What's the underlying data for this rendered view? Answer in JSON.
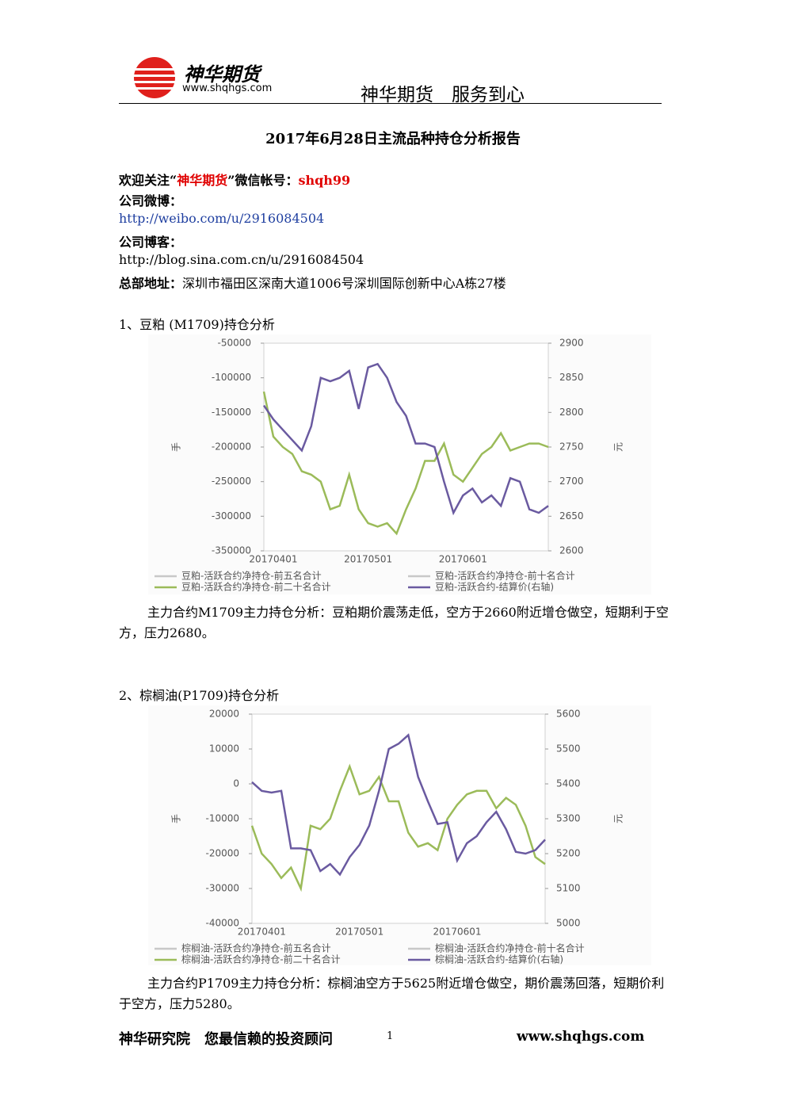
{
  "header": {
    "logo_name": "神华期货",
    "logo_url": "www.shqhgs.com",
    "slogan": "神华期货　服务到心"
  },
  "title": "2017年6月28日主流品种持仓分析报告",
  "contact": {
    "wechat": [
      "欢迎关注“",
      "神华期货",
      "”微信帐号：",
      "shqh99"
    ],
    "weibo_label": "公司微博：",
    "weibo_url": "http://weibo.com/u/2916084504",
    "blog_label": "公司博客：",
    "blog_url": "http://blog.sina.com.cn/u/2916084504",
    "address_label": "总部地址：",
    "address": "深圳市福田区深南大道1006号深圳国际创新中心A栋27楼"
  },
  "sections": [
    {
      "heading": "1、豆粕 (M1709)持仓分析",
      "text": "主力合约M1709主力持仓分析：豆粕期价震荡走低，空方于2660附近增仓做空，短期利于空方，压力2680。"
    },
    {
      "heading": "2、棕榈油(P1709)持仓分析",
      "text": "主力合约P1709主力持仓分析：棕榈油空方于5625附近增仓做空，期价震荡回落，短期价利于空方，压力5280。"
    }
  ],
  "footer": {
    "left": "神华研究院　您最信赖的投资顾问",
    "page": "1",
    "right": "www.shqhgs.com"
  },
  "chart_data": [
    {
      "type": "line",
      "ylabel": "手",
      "y2label": "元",
      "categories": [
        null,
        "20170401",
        null,
        null,
        null,
        null,
        null,
        null,
        null,
        null,
        null,
        "20170501",
        null,
        null,
        null,
        null,
        null,
        null,
        null,
        null,
        null,
        "20170601",
        null,
        null,
        null,
        null,
        null,
        null,
        null,
        null,
        null
      ],
      "ylim": [
        -350000,
        -50000
      ],
      "yticks": [
        -50000,
        -100000,
        -150000,
        -200000,
        -250000,
        -300000,
        -350000
      ],
      "y2lim": [
        2600,
        2900
      ],
      "y2ticks": [
        2900,
        2850,
        2800,
        2750,
        2700,
        2650,
        2600
      ],
      "series": [
        {
          "name": "豆粕-活跃合约净持仓-前五名合计",
          "color": "#c8c8c8",
          "values": [
            null,
            null,
            null,
            null,
            null,
            null,
            null,
            null,
            null,
            null,
            null,
            null,
            null,
            null,
            null,
            null,
            null,
            null,
            null,
            null,
            null,
            null,
            null,
            null,
            null,
            null,
            null,
            null,
            null,
            null,
            null
          ]
        },
        {
          "name": "豆粕-活跃合约净持仓-前十名合计",
          "color": "#c8c8c8",
          "values": [
            null,
            null,
            null,
            null,
            null,
            null,
            null,
            null,
            null,
            null,
            null,
            null,
            null,
            null,
            null,
            null,
            null,
            null,
            null,
            null,
            null,
            null,
            null,
            null,
            null,
            null,
            null,
            null,
            null,
            null,
            null
          ]
        },
        {
          "name": "豆粕-活跃合约净持仓-前二十名合计",
          "color": "#9bbb59",
          "values": [
            -120000,
            -185000,
            -200000,
            -210000,
            -235000,
            -240000,
            -250000,
            -290000,
            -285000,
            -240000,
            -290000,
            -310000,
            -315000,
            -310000,
            -325000,
            -290000,
            -260000,
            -220000,
            -220000,
            -195000,
            -240000,
            -250000,
            -230000,
            -210000,
            -200000,
            -180000,
            -205000,
            -200000,
            -195000,
            -195000,
            -200000
          ]
        },
        {
          "name": "豆粕-活跃合约-结算价(右轴)",
          "color": "#6a5aa0",
          "axis": "y2",
          "values": [
            2810,
            2790,
            2775,
            2760,
            2745,
            2780,
            2850,
            2845,
            2850,
            2860,
            2805,
            2865,
            2870,
            2850,
            2815,
            2795,
            2755,
            2755,
            2750,
            2700,
            2655,
            2680,
            2690,
            2670,
            2680,
            2665,
            2705,
            2700,
            2660,
            2655,
            2665
          ]
        }
      ]
    },
    {
      "type": "line",
      "ylabel": "手",
      "y2label": "元",
      "categories": [
        null,
        "20170401",
        null,
        null,
        null,
        null,
        null,
        null,
        null,
        null,
        null,
        "20170501",
        null,
        null,
        null,
        null,
        null,
        null,
        null,
        null,
        null,
        "20170601",
        null,
        null,
        null,
        null,
        null,
        null,
        null,
        null,
        null
      ],
      "ylim": [
        -40000,
        20000
      ],
      "yticks": [
        20000,
        10000,
        0,
        -10000,
        -20000,
        -30000,
        -40000
      ],
      "y2lim": [
        5000,
        5600
      ],
      "y2ticks": [
        5600,
        5500,
        5400,
        5300,
        5200,
        5100,
        5000
      ],
      "series": [
        {
          "name": "棕榈油-活跃合约净持仓-前五名合计",
          "color": "#c8c8c8",
          "values": [
            null,
            null,
            null,
            null,
            null,
            null,
            null,
            null,
            null,
            null,
            null,
            null,
            null,
            null,
            null,
            null,
            null,
            null,
            null,
            null,
            null,
            null,
            null,
            null,
            null,
            null,
            null,
            null,
            null,
            null,
            null
          ]
        },
        {
          "name": "棕榈油-活跃合约净持仓-前十名合计",
          "color": "#c8c8c8",
          "values": [
            null,
            null,
            null,
            null,
            null,
            null,
            null,
            null,
            null,
            null,
            null,
            null,
            null,
            null,
            null,
            null,
            null,
            null,
            null,
            null,
            null,
            null,
            null,
            null,
            null,
            null,
            null,
            null,
            null,
            null,
            null
          ]
        },
        {
          "name": "棕榈油-活跃合约净持仓-前二十名合计",
          "color": "#9bbb59",
          "values": [
            -12000,
            -20000,
            -23000,
            -27000,
            -24000,
            -30000,
            -12000,
            -13000,
            -10000,
            -2000,
            5000,
            -3000,
            -2000,
            2000,
            -5000,
            -5000,
            -14000,
            -18000,
            -17000,
            -19000,
            -10000,
            -6000,
            -3000,
            -2000,
            -2000,
            -7000,
            -4000,
            -6000,
            -12000,
            -21000,
            -23000
          ]
        },
        {
          "name": "棕榈油-活跃合约-结算价(右轴)",
          "color": "#6a5aa0",
          "axis": "y2",
          "values": [
            5405,
            5380,
            5375,
            5380,
            5215,
            5215,
            5210,
            5150,
            5170,
            5140,
            5190,
            5225,
            5280,
            5380,
            5500,
            5515,
            5540,
            5420,
            5350,
            5285,
            5290,
            5180,
            5230,
            5250,
            5290,
            5320,
            5270,
            5205,
            5200,
            5210,
            5240
          ]
        }
      ]
    }
  ]
}
